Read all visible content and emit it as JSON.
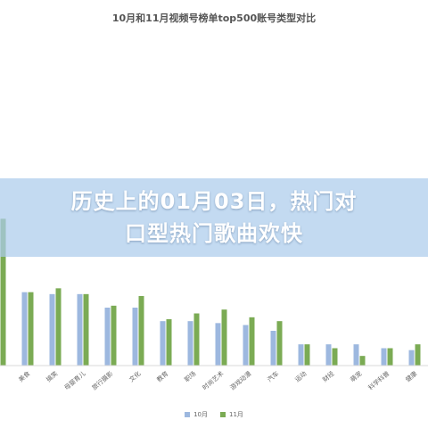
{
  "chart_data": {
    "type": "bar",
    "title": "10月和11月视频号榜单top500账号类型对比",
    "categories": [
      "",
      "美食",
      "搞笑",
      "母婴育儿",
      "旅行摄影",
      "文化",
      "教育",
      "职场",
      "时尚艺术",
      "游戏动漫",
      "汽车",
      "运动",
      "财经",
      "萌宠",
      "科学科普",
      "健康"
    ],
    "series": [
      {
        "name": "10月",
        "color": "#9db8df",
        "values": [
          90,
          38,
          37,
          37,
          30,
          30,
          23,
          23,
          22,
          21,
          18,
          11,
          11,
          11,
          9,
          8
        ]
      },
      {
        "name": "11月",
        "color": "#7bab54",
        "values": [
          76,
          38,
          40,
          37,
          31,
          36,
          24,
          27,
          29,
          25,
          23,
          11,
          9,
          5,
          9,
          11
        ]
      }
    ],
    "ylim": [
      0,
      90
    ],
    "grid": false,
    "legend": "bottom"
  },
  "overlay": {
    "line1": "历史上的01月03日，热门对",
    "line2": "口型热门歌曲欢快"
  }
}
